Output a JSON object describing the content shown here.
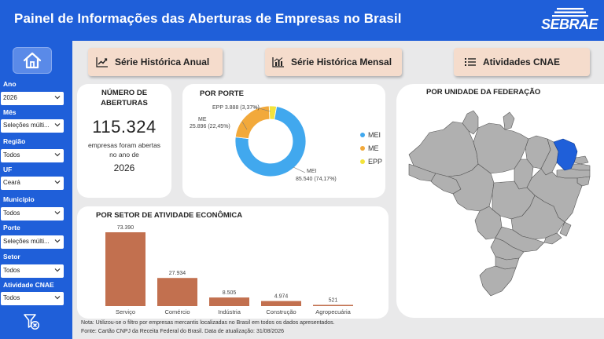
{
  "header": {
    "title": "Painel de Informações das Aberturas de Empresas no Brasil",
    "logo_text": "SEBRAE"
  },
  "nav": {
    "annual_label": "Série Histórica Anual",
    "monthly_label": "Série Histórica Mensal",
    "cnae_label": "Atividades CNAE"
  },
  "filters": {
    "ano": {
      "label": "Ano",
      "value": "2026"
    },
    "mes": {
      "label": "Mês",
      "value": "Seleções múlti..."
    },
    "regiao": {
      "label": "Região",
      "value": "Todos"
    },
    "uf": {
      "label": "UF",
      "value": "Ceará"
    },
    "municipio": {
      "label": "Município",
      "value": "Todos"
    },
    "porte": {
      "label": "Porte",
      "value": "Seleções múlti..."
    },
    "setor": {
      "label": "Setor",
      "value": "Todos"
    },
    "atividade": {
      "label": "Atividade CNAE",
      "value": "Todos"
    }
  },
  "kpi": {
    "title_line1": "NÚMERO DE",
    "title_line2": "ABERTURAS",
    "value": "115.324",
    "sub_line1": "empresas foram abertas",
    "sub_line2": "no ano de",
    "year": "2026"
  },
  "porte": {
    "title": "POR PORTE",
    "legend": [
      {
        "name": "MEI",
        "color": "#41a8ee"
      },
      {
        "name": "ME",
        "color": "#f2a93b"
      },
      {
        "name": "EPP",
        "color": "#f3e33c"
      }
    ],
    "labels": {
      "epp": "EPP 3.888 (3,37%)",
      "me_name": "ME",
      "me_value": "25.896 (22,45%)",
      "mei_name": "MEI",
      "mei_value": "85.540 (74,17%)"
    }
  },
  "setor": {
    "title": "POR SETOR DE ATIVIDADE ECONÔMICA",
    "bar_color": "#c2704f"
  },
  "uf_map": {
    "title": "POR UNIDADE DA FEDERAÇÃO",
    "highlight": "Ceará",
    "highlight_color": "#1f5fd9",
    "base_color": "#b0b0b0"
  },
  "notes": {
    "line1": "Nota: Utilizou-se o filtro por empresas mercantis localizadas no Brasil em todos os dados apresentados.",
    "line2": "Fonte: Cartão CNPJ da Receita Federal do Brasil. Data de atualização: 31/08/2026"
  },
  "chart_data": [
    {
      "type": "pie",
      "title": "POR PORTE",
      "categories": [
        "MEI",
        "ME",
        "EPP"
      ],
      "values": [
        85540,
        25896,
        3888
      ],
      "percent": [
        74.17,
        22.45,
        3.37
      ],
      "colors": [
        "#41a8ee",
        "#f2a93b",
        "#f3e33c"
      ],
      "legend": "right"
    },
    {
      "type": "bar",
      "title": "POR SETOR DE ATIVIDADE ECONÔMICA",
      "categories": [
        "Serviço",
        "Comércio",
        "Indústria",
        "Construção",
        "Agropecuária"
      ],
      "values": [
        73390,
        27934,
        8505,
        4974,
        521
      ],
      "value_labels": [
        "73.390",
        "27.934",
        "8.505",
        "4.974",
        "521"
      ],
      "ylim": [
        0,
        73390
      ]
    }
  ]
}
